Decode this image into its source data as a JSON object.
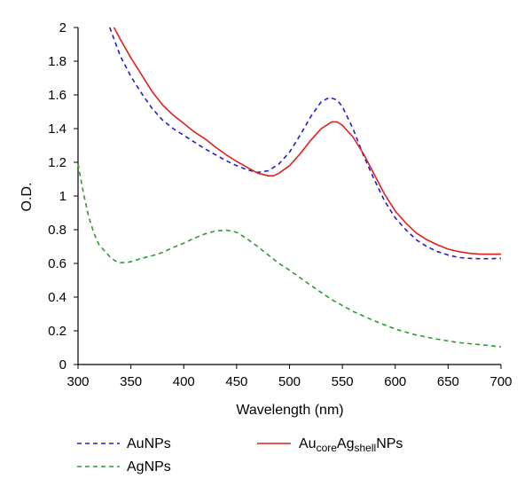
{
  "chart_data": {
    "type": "line",
    "title": "",
    "xlabel": "Wavelength (nm)",
    "ylabel": "O.D.",
    "xlim": [
      300,
      700
    ],
    "ylim": [
      0,
      2
    ],
    "xticks": [
      300,
      350,
      400,
      450,
      500,
      550,
      600,
      650,
      700
    ],
    "yticks": [
      0,
      0.2,
      0.4,
      0.6,
      0.8,
      1,
      1.2,
      1.4,
      1.6,
      1.8,
      2
    ],
    "ytick_labels": [
      "0",
      "0.2",
      "0.4",
      "0.6",
      "0.8",
      "1",
      "1.2",
      "1.4",
      "1.6",
      "1.8",
      "2"
    ],
    "grid": false,
    "legend_position": "bottom",
    "series": [
      {
        "name": "AuNPs",
        "color": "#1f1fcf",
        "dash": "dashed",
        "points": [
          [
            330,
            2.0
          ],
          [
            340,
            1.83
          ],
          [
            350,
            1.71
          ],
          [
            360,
            1.61
          ],
          [
            370,
            1.52
          ],
          [
            380,
            1.45
          ],
          [
            390,
            1.4
          ],
          [
            400,
            1.36
          ],
          [
            410,
            1.32
          ],
          [
            420,
            1.28
          ],
          [
            430,
            1.245
          ],
          [
            440,
            1.21
          ],
          [
            450,
            1.18
          ],
          [
            460,
            1.155
          ],
          [
            470,
            1.14
          ],
          [
            480,
            1.15
          ],
          [
            490,
            1.19
          ],
          [
            500,
            1.26
          ],
          [
            510,
            1.36
          ],
          [
            520,
            1.47
          ],
          [
            530,
            1.56
          ],
          [
            538,
            1.585
          ],
          [
            545,
            1.57
          ],
          [
            550,
            1.53
          ],
          [
            560,
            1.4
          ],
          [
            570,
            1.24
          ],
          [
            580,
            1.1
          ],
          [
            590,
            0.97
          ],
          [
            600,
            0.87
          ],
          [
            610,
            0.8
          ],
          [
            620,
            0.74
          ],
          [
            630,
            0.7
          ],
          [
            640,
            0.67
          ],
          [
            650,
            0.65
          ],
          [
            660,
            0.635
          ],
          [
            670,
            0.63
          ],
          [
            680,
            0.628
          ],
          [
            690,
            0.628
          ],
          [
            700,
            0.63
          ]
        ]
      },
      {
        "name": "AgNPs",
        "color": "#2e9a2e",
        "dash": "dashed",
        "points": [
          [
            300,
            1.19
          ],
          [
            305,
            1.02
          ],
          [
            310,
            0.88
          ],
          [
            315,
            0.78
          ],
          [
            320,
            0.71
          ],
          [
            330,
            0.64
          ],
          [
            335,
            0.615
          ],
          [
            340,
            0.605
          ],
          [
            345,
            0.605
          ],
          [
            350,
            0.61
          ],
          [
            360,
            0.63
          ],
          [
            370,
            0.645
          ],
          [
            380,
            0.665
          ],
          [
            390,
            0.695
          ],
          [
            400,
            0.72
          ],
          [
            410,
            0.75
          ],
          [
            420,
            0.775
          ],
          [
            430,
            0.792
          ],
          [
            440,
            0.798
          ],
          [
            450,
            0.785
          ],
          [
            460,
            0.745
          ],
          [
            470,
            0.7
          ],
          [
            480,
            0.65
          ],
          [
            490,
            0.6
          ],
          [
            500,
            0.56
          ],
          [
            520,
            0.47
          ],
          [
            540,
            0.385
          ],
          [
            560,
            0.315
          ],
          [
            580,
            0.26
          ],
          [
            600,
            0.21
          ],
          [
            620,
            0.175
          ],
          [
            640,
            0.15
          ],
          [
            660,
            0.13
          ],
          [
            680,
            0.118
          ],
          [
            700,
            0.105
          ]
        ]
      },
      {
        "name": "AucoreAgshellNPs",
        "color": "#e02020",
        "dash": "solid",
        "points": [
          [
            334,
            2.0
          ],
          [
            340,
            1.93
          ],
          [
            350,
            1.82
          ],
          [
            360,
            1.72
          ],
          [
            370,
            1.62
          ],
          [
            380,
            1.54
          ],
          [
            390,
            1.48
          ],
          [
            400,
            1.43
          ],
          [
            410,
            1.38
          ],
          [
            420,
            1.34
          ],
          [
            430,
            1.29
          ],
          [
            440,
            1.245
          ],
          [
            450,
            1.205
          ],
          [
            460,
            1.17
          ],
          [
            470,
            1.135
          ],
          [
            480,
            1.12
          ],
          [
            485,
            1.12
          ],
          [
            490,
            1.135
          ],
          [
            500,
            1.18
          ],
          [
            510,
            1.25
          ],
          [
            520,
            1.33
          ],
          [
            530,
            1.4
          ],
          [
            540,
            1.44
          ],
          [
            545,
            1.44
          ],
          [
            550,
            1.42
          ],
          [
            560,
            1.35
          ],
          [
            570,
            1.25
          ],
          [
            580,
            1.13
          ],
          [
            590,
            1.01
          ],
          [
            600,
            0.91
          ],
          [
            610,
            0.84
          ],
          [
            620,
            0.78
          ],
          [
            630,
            0.74
          ],
          [
            640,
            0.71
          ],
          [
            650,
            0.685
          ],
          [
            660,
            0.67
          ],
          [
            670,
            0.66
          ],
          [
            680,
            0.655
          ],
          [
            690,
            0.655
          ],
          [
            700,
            0.655
          ]
        ]
      }
    ]
  },
  "legend": {
    "aunps_label": "AuNPs",
    "agnps_label": "AgNPs",
    "aucore_parts": {
      "base1": "Au",
      "sub1": "core",
      "base2": "Ag",
      "sub2": "shell",
      "tail": "NPs"
    }
  }
}
